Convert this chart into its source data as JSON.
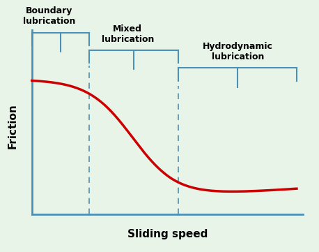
{
  "background_color": "#e8f4e8",
  "curve_color": "#cc0000",
  "bracket_color": "#4a90b8",
  "text_color": "#000000",
  "xlabel": "Sliding speed",
  "ylabel": "Friction",
  "boundary_label": "Boundary\nlubrication",
  "mixed_label": "Mixed\nlubrication",
  "hydro_label": "Hydrodynamic\nlubrication",
  "axis_lw": 2.0,
  "curve_lw": 2.5,
  "bracket_lw": 1.5,
  "dash_lw": 1.2
}
